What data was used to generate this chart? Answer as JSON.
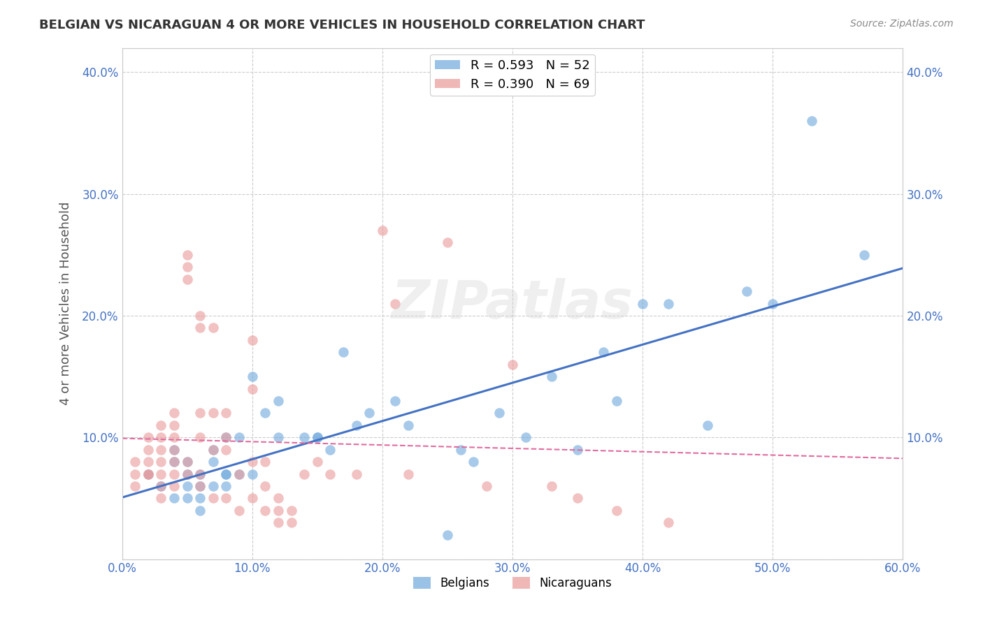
{
  "title": "BELGIAN VS NICARAGUAN 4 OR MORE VEHICLES IN HOUSEHOLD CORRELATION CHART",
  "source": "Source: ZipAtlas.com",
  "ylabel": "4 or more Vehicles in Household",
  "xlim": [
    0.0,
    0.6
  ],
  "ylim": [
    0.0,
    0.42
  ],
  "xticks": [
    0.0,
    0.1,
    0.2,
    0.3,
    0.4,
    0.5,
    0.6
  ],
  "yticks": [
    0.0,
    0.1,
    0.2,
    0.3,
    0.4
  ],
  "ytick_labels": [
    "",
    "10.0%",
    "20.0%",
    "30.0%",
    "40.0%"
  ],
  "xtick_labels": [
    "0.0%",
    "10.0%",
    "20.0%",
    "30.0%",
    "40.0%",
    "50.0%",
    "60.0%"
  ],
  "belgian_scatter_color": "#6fa8dc",
  "nicaraguan_scatter_color": "#ea9999",
  "belgian_line_color": "#4472c4",
  "nicaraguan_line_color": "#e06c9f",
  "belgian_R": 0.593,
  "belgian_N": 52,
  "nicaraguan_R": 0.39,
  "nicaraguan_N": 69,
  "watermark": "ZIPatlas",
  "background_color": "#ffffff",
  "grid_color": "#cccccc",
  "tick_color": "#4472c4",
  "belgian_x": [
    0.02,
    0.03,
    0.04,
    0.04,
    0.04,
    0.05,
    0.05,
    0.05,
    0.05,
    0.06,
    0.06,
    0.06,
    0.06,
    0.07,
    0.07,
    0.07,
    0.08,
    0.08,
    0.08,
    0.08,
    0.09,
    0.09,
    0.1,
    0.1,
    0.11,
    0.12,
    0.12,
    0.14,
    0.15,
    0.15,
    0.16,
    0.17,
    0.18,
    0.19,
    0.21,
    0.22,
    0.25,
    0.26,
    0.27,
    0.29,
    0.31,
    0.33,
    0.35,
    0.37,
    0.38,
    0.4,
    0.42,
    0.45,
    0.48,
    0.5,
    0.53,
    0.57
  ],
  "belgian_y": [
    0.07,
    0.06,
    0.08,
    0.09,
    0.05,
    0.07,
    0.08,
    0.06,
    0.05,
    0.07,
    0.05,
    0.06,
    0.04,
    0.08,
    0.09,
    0.06,
    0.1,
    0.07,
    0.07,
    0.06,
    0.07,
    0.1,
    0.07,
    0.15,
    0.12,
    0.13,
    0.1,
    0.1,
    0.1,
    0.1,
    0.09,
    0.17,
    0.11,
    0.12,
    0.13,
    0.11,
    0.02,
    0.09,
    0.08,
    0.12,
    0.1,
    0.15,
    0.09,
    0.17,
    0.13,
    0.21,
    0.21,
    0.11,
    0.22,
    0.21,
    0.36,
    0.25
  ],
  "nicaraguan_x": [
    0.01,
    0.01,
    0.01,
    0.02,
    0.02,
    0.02,
    0.02,
    0.02,
    0.03,
    0.03,
    0.03,
    0.03,
    0.03,
    0.03,
    0.03,
    0.04,
    0.04,
    0.04,
    0.04,
    0.04,
    0.04,
    0.04,
    0.05,
    0.05,
    0.05,
    0.05,
    0.05,
    0.06,
    0.06,
    0.06,
    0.06,
    0.06,
    0.06,
    0.07,
    0.07,
    0.07,
    0.07,
    0.08,
    0.08,
    0.08,
    0.08,
    0.09,
    0.09,
    0.1,
    0.1,
    0.1,
    0.1,
    0.11,
    0.11,
    0.11,
    0.12,
    0.12,
    0.12,
    0.13,
    0.13,
    0.14,
    0.15,
    0.16,
    0.18,
    0.2,
    0.21,
    0.22,
    0.25,
    0.28,
    0.3,
    0.33,
    0.35,
    0.38,
    0.42
  ],
  "nicaraguan_y": [
    0.08,
    0.07,
    0.06,
    0.1,
    0.09,
    0.08,
    0.07,
    0.07,
    0.11,
    0.1,
    0.09,
    0.08,
    0.07,
    0.06,
    0.05,
    0.12,
    0.11,
    0.1,
    0.09,
    0.08,
    0.07,
    0.06,
    0.25,
    0.24,
    0.23,
    0.08,
    0.07,
    0.2,
    0.19,
    0.12,
    0.1,
    0.07,
    0.06,
    0.19,
    0.12,
    0.09,
    0.05,
    0.12,
    0.1,
    0.09,
    0.05,
    0.07,
    0.04,
    0.18,
    0.14,
    0.08,
    0.05,
    0.08,
    0.06,
    0.04,
    0.05,
    0.04,
    0.03,
    0.04,
    0.03,
    0.07,
    0.08,
    0.07,
    0.07,
    0.27,
    0.21,
    0.07,
    0.26,
    0.06,
    0.16,
    0.06,
    0.05,
    0.04,
    0.03
  ]
}
